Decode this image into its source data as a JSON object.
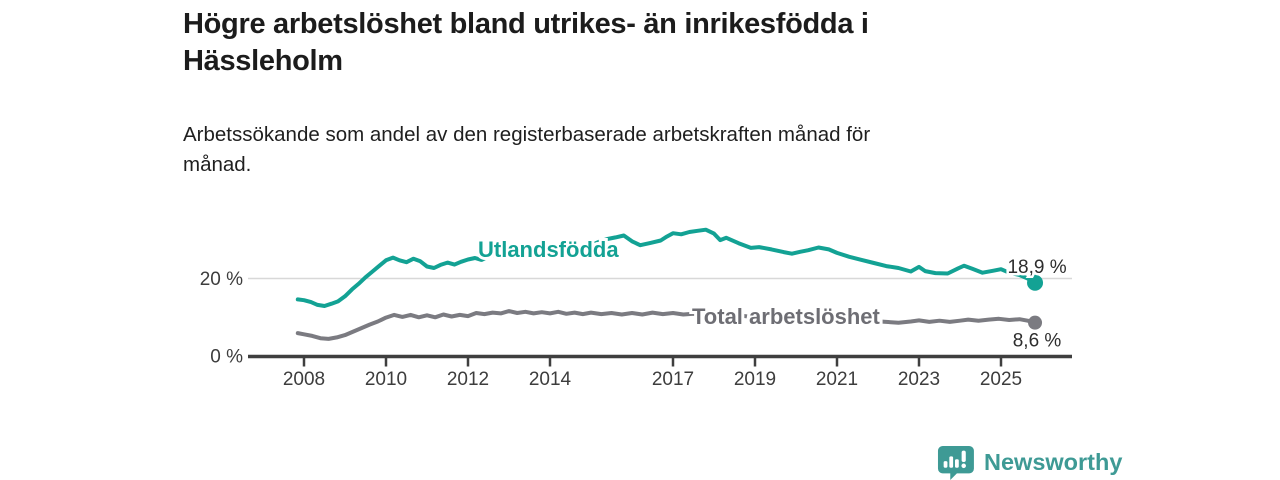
{
  "header": {
    "title": "Högre arbetslöshet bland utrikes- än inrikesfödda i\nHässleholm",
    "subtitle": "Arbetssökande som andel av den registerbaserade arbetskraften månad för\nmånad."
  },
  "footer": {
    "brand": "Newsworthy"
  },
  "colors": {
    "teal": "#13a294",
    "gray_line": "#7b7b81",
    "gray_label": "#6e6e74",
    "axis": "#3f3f3f",
    "grid": "#d8d8d8",
    "tick_text": "#3d3d3d",
    "value_text": "#2d2d2d",
    "logo_teal": "#3e9a95"
  },
  "chart_data": {
    "type": "line",
    "title": "Högre arbetslöshet bland utrikes- än inrikesfödda i Hässleholm",
    "subtitle": "Arbetssökande som andel av den registerbaserade arbetskraften månad för månad.",
    "unit": "%",
    "grid": "horizontal-20-only",
    "legend_position": "inline-labels",
    "xlim": [
      2007.6,
      2026.7
    ],
    "ylim": [
      0,
      36
    ],
    "x_ticks": [
      2008,
      2010,
      2012,
      2014,
      2017,
      2019,
      2021,
      2023,
      2025
    ],
    "y_axis": [
      {
        "value": 0,
        "label": "0 %"
      },
      {
        "value": 20,
        "label": "20 %"
      }
    ],
    "series": [
      {
        "name": "Utlandsfödda",
        "color": "#13a294",
        "label_color": "#13a294",
        "end_label": "18,9 %",
        "end_value": 18.9,
        "points": [
          [
            2007.85,
            14.6
          ],
          [
            2008.0,
            14.4
          ],
          [
            2008.17,
            13.9
          ],
          [
            2008.33,
            13.2
          ],
          [
            2008.5,
            12.9
          ],
          [
            2008.67,
            13.5
          ],
          [
            2008.83,
            14.1
          ],
          [
            2009.0,
            15.4
          ],
          [
            2009.17,
            17.2
          ],
          [
            2009.33,
            18.6
          ],
          [
            2009.5,
            20.3
          ],
          [
            2009.67,
            21.8
          ],
          [
            2009.83,
            23.2
          ],
          [
            2010.0,
            24.7
          ],
          [
            2010.17,
            25.4
          ],
          [
            2010.33,
            24.7
          ],
          [
            2010.5,
            24.2
          ],
          [
            2010.67,
            25.1
          ],
          [
            2010.83,
            24.5
          ],
          [
            2011.0,
            23.1
          ],
          [
            2011.17,
            22.7
          ],
          [
            2011.33,
            23.5
          ],
          [
            2011.5,
            24.1
          ],
          [
            2011.67,
            23.6
          ],
          [
            2011.83,
            24.3
          ],
          [
            2012.0,
            24.9
          ],
          [
            2012.17,
            25.3
          ],
          [
            2012.33,
            24.8
          ],
          [
            2012.5,
            25.7
          ],
          [
            2012.67,
            26.2
          ],
          [
            2012.83,
            26.7
          ],
          [
            2013.0,
            26.3
          ],
          [
            2013.17,
            25.8
          ],
          [
            2013.33,
            26.5
          ],
          [
            2013.5,
            27.1
          ],
          [
            2013.67,
            26.6
          ],
          [
            2013.83,
            27.0
          ],
          [
            2014.0,
            27.4
          ],
          [
            2014.25,
            27.0
          ],
          [
            2014.5,
            27.7
          ],
          [
            2014.75,
            28.1
          ],
          [
            2015.0,
            28.6
          ],
          [
            2015.2,
            29.5
          ],
          [
            2015.4,
            30.2
          ],
          [
            2015.6,
            30.6
          ],
          [
            2015.8,
            31.1
          ],
          [
            2016.0,
            29.6
          ],
          [
            2016.2,
            28.6
          ],
          [
            2016.45,
            29.2
          ],
          [
            2016.7,
            29.8
          ],
          [
            2016.85,
            30.8
          ],
          [
            2017.0,
            31.7
          ],
          [
            2017.2,
            31.4
          ],
          [
            2017.4,
            32.0
          ],
          [
            2017.6,
            32.3
          ],
          [
            2017.8,
            32.6
          ],
          [
            2018.0,
            31.6
          ],
          [
            2018.15,
            29.9
          ],
          [
            2018.3,
            30.5
          ],
          [
            2018.6,
            29.1
          ],
          [
            2018.9,
            27.9
          ],
          [
            2019.1,
            28.1
          ],
          [
            2019.4,
            27.5
          ],
          [
            2019.7,
            26.8
          ],
          [
            2019.9,
            26.4
          ],
          [
            2020.1,
            26.9
          ],
          [
            2020.3,
            27.3
          ],
          [
            2020.55,
            28.0
          ],
          [
            2020.8,
            27.5
          ],
          [
            2021.0,
            26.6
          ],
          [
            2021.3,
            25.6
          ],
          [
            2021.6,
            24.8
          ],
          [
            2021.9,
            24.0
          ],
          [
            2022.2,
            23.2
          ],
          [
            2022.5,
            22.7
          ],
          [
            2022.8,
            21.8
          ],
          [
            2023.0,
            23.0
          ],
          [
            2023.15,
            21.9
          ],
          [
            2023.4,
            21.4
          ],
          [
            2023.7,
            21.3
          ],
          [
            2023.95,
            22.6
          ],
          [
            2024.1,
            23.3
          ],
          [
            2024.3,
            22.5
          ],
          [
            2024.55,
            21.5
          ],
          [
            2024.8,
            22.0
          ],
          [
            2025.0,
            22.4
          ],
          [
            2025.2,
            21.5
          ],
          [
            2025.45,
            20.9
          ],
          [
            2025.65,
            20.0
          ],
          [
            2025.83,
            18.9
          ]
        ]
      },
      {
        "name": "Total arbetslöshet",
        "color": "#7b7b81",
        "label_color": "#6e6e74",
        "end_label": "8,6 %",
        "end_value": 8.6,
        "points": [
          [
            2007.85,
            5.9
          ],
          [
            2008.0,
            5.6
          ],
          [
            2008.2,
            5.2
          ],
          [
            2008.4,
            4.6
          ],
          [
            2008.6,
            4.4
          ],
          [
            2008.8,
            4.8
          ],
          [
            2009.0,
            5.4
          ],
          [
            2009.2,
            6.3
          ],
          [
            2009.4,
            7.2
          ],
          [
            2009.6,
            8.1
          ],
          [
            2009.8,
            8.9
          ],
          [
            2010.0,
            9.9
          ],
          [
            2010.2,
            10.6
          ],
          [
            2010.4,
            10.1
          ],
          [
            2010.6,
            10.6
          ],
          [
            2010.8,
            10.0
          ],
          [
            2011.0,
            10.5
          ],
          [
            2011.2,
            10.0
          ],
          [
            2011.4,
            10.7
          ],
          [
            2011.6,
            10.2
          ],
          [
            2011.8,
            10.6
          ],
          [
            2012.0,
            10.3
          ],
          [
            2012.2,
            11.1
          ],
          [
            2012.4,
            10.8
          ],
          [
            2012.6,
            11.2
          ],
          [
            2012.8,
            11.0
          ],
          [
            2013.0,
            11.6
          ],
          [
            2013.2,
            11.1
          ],
          [
            2013.4,
            11.4
          ],
          [
            2013.6,
            11.0
          ],
          [
            2013.8,
            11.3
          ],
          [
            2014.0,
            11.0
          ],
          [
            2014.2,
            11.4
          ],
          [
            2014.4,
            10.9
          ],
          [
            2014.6,
            11.2
          ],
          [
            2014.8,
            10.8
          ],
          [
            2015.0,
            11.2
          ],
          [
            2015.25,
            10.8
          ],
          [
            2015.5,
            11.1
          ],
          [
            2015.75,
            10.7
          ],
          [
            2016.0,
            11.1
          ],
          [
            2016.25,
            10.7
          ],
          [
            2016.5,
            11.2
          ],
          [
            2016.75,
            10.8
          ],
          [
            2017.0,
            11.1
          ],
          [
            2017.25,
            10.7
          ],
          [
            2017.5,
            10.9
          ],
          [
            2017.75,
            10.5
          ],
          [
            2018.0,
            10.7
          ],
          [
            2018.3,
            10.3
          ],
          [
            2018.6,
            10.5
          ],
          [
            2018.9,
            10.1
          ],
          [
            2019.2,
            10.0
          ],
          [
            2019.5,
            9.7
          ],
          [
            2019.8,
            9.9
          ],
          [
            2020.1,
            10.3
          ],
          [
            2020.4,
            10.9
          ],
          [
            2020.7,
            10.6
          ],
          [
            2021.0,
            10.2
          ],
          [
            2021.3,
            9.7
          ],
          [
            2021.6,
            9.3
          ],
          [
            2021.9,
            9.0
          ],
          [
            2022.2,
            8.8
          ],
          [
            2022.5,
            8.6
          ],
          [
            2022.8,
            8.9
          ],
          [
            2023.0,
            9.2
          ],
          [
            2023.25,
            8.8
          ],
          [
            2023.5,
            9.1
          ],
          [
            2023.75,
            8.8
          ],
          [
            2024.0,
            9.1
          ],
          [
            2024.2,
            9.4
          ],
          [
            2024.45,
            9.1
          ],
          [
            2024.7,
            9.4
          ],
          [
            2024.95,
            9.6
          ],
          [
            2025.2,
            9.3
          ],
          [
            2025.45,
            9.5
          ],
          [
            2025.65,
            9.1
          ],
          [
            2025.83,
            8.6
          ]
        ]
      }
    ]
  }
}
